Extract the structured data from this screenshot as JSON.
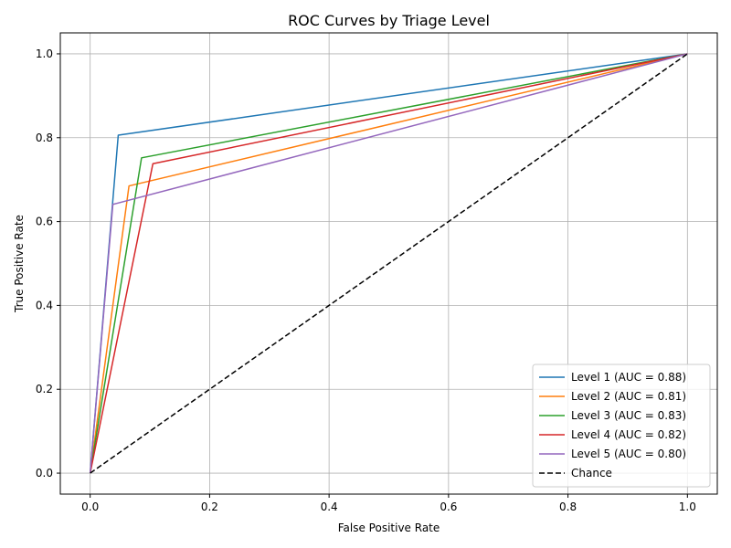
{
  "chart_data": {
    "type": "line",
    "title": "ROC Curves by Triage Level",
    "xlabel": "False Positive Rate",
    "ylabel": "True Positive Rate",
    "xlim": [
      -0.05,
      1.05
    ],
    "ylim": [
      -0.05,
      1.05
    ],
    "x_ticks": [
      0.0,
      0.2,
      0.4,
      0.6,
      0.8,
      1.0
    ],
    "y_ticks": [
      0.0,
      0.2,
      0.4,
      0.6,
      0.8,
      1.0
    ],
    "x_tick_labels": [
      "0.0",
      "0.2",
      "0.4",
      "0.6",
      "0.8",
      "1.0"
    ],
    "y_tick_labels": [
      "0.0",
      "0.2",
      "0.4",
      "0.6",
      "0.8",
      "1.0"
    ],
    "grid": true,
    "legend_position": "lower-right",
    "series": [
      {
        "name": "Level 1 (AUC = 0.88)",
        "color": "#1f77b4",
        "dash": "solid",
        "x": [
          0.0,
          0.047,
          1.0
        ],
        "y": [
          0.0,
          0.806,
          1.0
        ]
      },
      {
        "name": "Level 2 (AUC = 0.81)",
        "color": "#ff7f0e",
        "dash": "solid",
        "x": [
          0.0,
          0.065,
          1.0
        ],
        "y": [
          0.0,
          0.685,
          1.0
        ]
      },
      {
        "name": "Level 3 (AUC = 0.83)",
        "color": "#2ca02c",
        "dash": "solid",
        "x": [
          0.0,
          0.086,
          1.0
        ],
        "y": [
          0.0,
          0.752,
          1.0
        ]
      },
      {
        "name": "Level 4 (AUC = 0.82)",
        "color": "#d62728",
        "dash": "solid",
        "x": [
          0.0,
          0.105,
          1.0
        ],
        "y": [
          0.0,
          0.738,
          1.0
        ]
      },
      {
        "name": "Level 5 (AUC = 0.80)",
        "color": "#9467bd",
        "dash": "solid",
        "x": [
          0.0,
          0.038,
          1.0
        ],
        "y": [
          0.0,
          0.641,
          1.0
        ]
      },
      {
        "name": "Chance",
        "color": "#000000",
        "dash": "dashed",
        "x": [
          0.0,
          1.0
        ],
        "y": [
          0.0,
          1.0
        ]
      }
    ]
  }
}
